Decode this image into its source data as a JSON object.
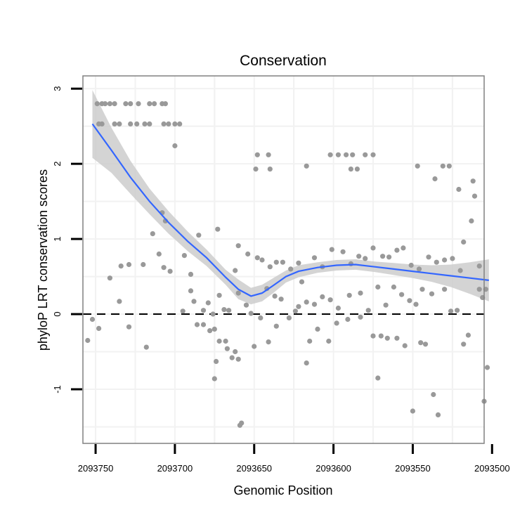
{
  "chart_data": {
    "type": "scatter",
    "title": "Conservation",
    "xlabel": "Genomic Position",
    "ylabel": "phyloP LRT conservation scores",
    "x_reversed": true,
    "xlim": [
      2093505,
      2093758
    ],
    "ylim": [
      -1.72,
      3.17
    ],
    "x_ticks": [
      2093750,
      2093700,
      2093650,
      2093600,
      2093550,
      2093500
    ],
    "x_tick_labels": [
      "2093750",
      "2093700",
      "2093650",
      "2093600",
      "2093550",
      "2093500"
    ],
    "y_ticks": [
      -1,
      0,
      1,
      2,
      3
    ],
    "y_tick_labels": [
      "-1",
      "0",
      "1",
      "2",
      "3"
    ],
    "grid": true,
    "reference_line": {
      "y": 0,
      "style": "dashed"
    },
    "colors": {
      "points": "#999999",
      "smooth": "#3366ff",
      "ribbon": "#cccccc",
      "panel_border": "#808080",
      "grid": "#f2f2f2"
    },
    "series": [
      {
        "name": "scores",
        "type": "scatter",
        "points": [
          [
            2093749,
            2.8
          ],
          [
            2093746,
            2.8
          ],
          [
            2093744,
            2.8
          ],
          [
            2093741,
            2.8
          ],
          [
            2093738,
            2.8
          ],
          [
            2093731,
            2.8
          ],
          [
            2093728,
            2.8
          ],
          [
            2093723,
            2.8
          ],
          [
            2093716,
            2.8
          ],
          [
            2093713,
            2.8
          ],
          [
            2093708,
            2.8
          ],
          [
            2093706,
            2.8
          ],
          [
            2093748,
            2.53
          ],
          [
            2093746,
            2.53
          ],
          [
            2093738,
            2.53
          ],
          [
            2093735,
            2.53
          ],
          [
            2093728,
            2.53
          ],
          [
            2093724,
            2.53
          ],
          [
            2093719,
            2.53
          ],
          [
            2093716,
            2.53
          ],
          [
            2093707,
            2.53
          ],
          [
            2093704,
            2.53
          ],
          [
            2093700,
            2.53
          ],
          [
            2093697,
            2.53
          ],
          [
            2093700,
            2.24
          ],
          [
            2093708,
            1.35
          ],
          [
            2093648,
            2.12
          ],
          [
            2093641,
            2.12
          ],
          [
            2093649,
            1.93
          ],
          [
            2093640,
            1.93
          ],
          [
            2093617,
            1.97
          ],
          [
            2093602,
            2.12
          ],
          [
            2093597,
            2.12
          ],
          [
            2093592,
            2.12
          ],
          [
            2093588,
            2.12
          ],
          [
            2093580,
            2.12
          ],
          [
            2093575,
            2.12
          ],
          [
            2093589,
            1.93
          ],
          [
            2093585,
            1.93
          ],
          [
            2093547,
            1.97
          ],
          [
            2093531,
            1.97
          ],
          [
            2093527,
            1.97
          ],
          [
            2093536,
            1.8
          ],
          [
            2093521,
            1.66
          ],
          [
            2093512,
            1.77
          ],
          [
            2093511,
            1.57
          ],
          [
            2093513,
            1.24
          ],
          [
            2093518,
            0.96
          ],
          [
            2093504,
            0.33
          ],
          [
            2093508,
            0.33
          ],
          [
            2093506,
            0.22
          ],
          [
            2093508,
            0.64
          ],
          [
            2093503,
            -0.71
          ],
          [
            2093505,
            -1.16
          ],
          [
            2093515,
            -0.28
          ],
          [
            2093518,
            -0.4
          ],
          [
            2093522,
            0.05
          ],
          [
            2093706,
            1.24
          ],
          [
            2093714,
            1.07
          ],
          [
            2093710,
            0.8
          ],
          [
            2093707,
            0.62
          ],
          [
            2093694,
            0.78
          ],
          [
            2093690,
            0.53
          ],
          [
            2093685,
            1.05
          ],
          [
            2093673,
            1.13
          ],
          [
            2093660,
            0.91
          ],
          [
            2093654,
            0.8
          ],
          [
            2093662,
            0.58
          ],
          [
            2093729,
            0.66
          ],
          [
            2093734,
            0.64
          ],
          [
            2093741,
            0.48
          ],
          [
            2093735,
            0.17
          ],
          [
            2093755,
            -0.35
          ],
          [
            2093752,
            -0.07
          ],
          [
            2093748,
            -0.19
          ],
          [
            2093729,
            -0.17
          ],
          [
            2093718,
            -0.44
          ],
          [
            2093690,
            0.31
          ],
          [
            2093688,
            0.17
          ],
          [
            2093682,
            0.05
          ],
          [
            2093679,
            0.15
          ],
          [
            2093672,
            0.25
          ],
          [
            2093686,
            -0.14
          ],
          [
            2093682,
            -0.14
          ],
          [
            2093678,
            -0.22
          ],
          [
            2093675,
            -0.2
          ],
          [
            2093672,
            -0.36
          ],
          [
            2093668,
            -0.36
          ],
          [
            2093667,
            -0.46
          ],
          [
            2093664,
            -0.58
          ],
          [
            2093662,
            -0.5
          ],
          [
            2093659,
            -1.48
          ],
          [
            2093658,
            -1.45
          ],
          [
            2093650,
            -0.43
          ],
          [
            2093675,
            -0.86
          ],
          [
            2093674,
            -0.63
          ],
          [
            2093648,
            0.75
          ],
          [
            2093645,
            0.72
          ],
          [
            2093640,
            0.63
          ],
          [
            2093636,
            0.69
          ],
          [
            2093632,
            0.69
          ],
          [
            2093627,
            0.6
          ],
          [
            2093622,
            0.68
          ],
          [
            2093612,
            0.75
          ],
          [
            2093607,
            0.63
          ],
          [
            2093601,
            0.86
          ],
          [
            2093594,
            0.83
          ],
          [
            2093589,
            0.67
          ],
          [
            2093584,
            0.77
          ],
          [
            2093580,
            0.74
          ],
          [
            2093575,
            0.88
          ],
          [
            2093569,
            0.77
          ],
          [
            2093565,
            0.76
          ],
          [
            2093560,
            0.85
          ],
          [
            2093556,
            0.88
          ],
          [
            2093551,
            0.65
          ],
          [
            2093546,
            0.6
          ],
          [
            2093540,
            0.76
          ],
          [
            2093535,
            0.69
          ],
          [
            2093530,
            0.72
          ],
          [
            2093525,
            0.74
          ],
          [
            2093520,
            0.58
          ],
          [
            2093642,
            0.34
          ],
          [
            2093637,
            0.24
          ],
          [
            2093633,
            0.2
          ],
          [
            2093624,
            0.04
          ],
          [
            2093617,
            0.16
          ],
          [
            2093612,
            0.13
          ],
          [
            2093607,
            0.23
          ],
          [
            2093602,
            0.19
          ],
          [
            2093597,
            0.08
          ],
          [
            2093590,
            0.25
          ],
          [
            2093583,
            0.28
          ],
          [
            2093578,
            0.05
          ],
          [
            2093572,
            0.36
          ],
          [
            2093567,
            0.12
          ],
          [
            2093562,
            0.36
          ],
          [
            2093557,
            0.26
          ],
          [
            2093552,
            0.18
          ],
          [
            2093548,
            0.13
          ],
          [
            2093544,
            0.33
          ],
          [
            2093538,
            0.27
          ],
          [
            2093530,
            0.33
          ],
          [
            2093526,
            0.04
          ],
          [
            2093636,
            -0.16
          ],
          [
            2093628,
            -0.05
          ],
          [
            2093622,
            0.1
          ],
          [
            2093620,
            0.43
          ],
          [
            2093615,
            -0.36
          ],
          [
            2093610,
            -0.2
          ],
          [
            2093603,
            -0.36
          ],
          [
            2093598,
            -0.12
          ],
          [
            2093591,
            -0.07
          ],
          [
            2093583,
            -0.04
          ],
          [
            2093575,
            -0.29
          ],
          [
            2093570,
            -0.29
          ],
          [
            2093566,
            -0.32
          ],
          [
            2093560,
            -0.32
          ],
          [
            2093555,
            -0.42
          ],
          [
            2093550,
            -1.29
          ],
          [
            2093545,
            -0.38
          ],
          [
            2093542,
            -0.4
          ],
          [
            2093537,
            -1.07
          ],
          [
            2093534,
            -1.34
          ],
          [
            2093617,
            -0.65
          ],
          [
            2093641,
            -0.37
          ],
          [
            2093646,
            -0.05
          ],
          [
            2093652,
            0.01
          ],
          [
            2093655,
            0.12
          ],
          [
            2093660,
            0.28
          ],
          [
            2093666,
            0.05
          ],
          [
            2093669,
            0.06
          ],
          [
            2093676,
            0.0
          ],
          [
            2093695,
            0.04
          ],
          [
            2093703,
            0.57
          ],
          [
            2093720,
            0.66
          ],
          [
            2093572,
            -0.85
          ],
          [
            2093660,
            -0.6
          ]
        ]
      },
      {
        "name": "smooth",
        "type": "line",
        "x": [
          2093752,
          2093740,
          2093728,
          2093716,
          2093704,
          2093692,
          2093680,
          2093668,
          2093660,
          2093652,
          2093645,
          2093638,
          2093630,
          2093622,
          2093610,
          2093598,
          2093586,
          2093574,
          2093562,
          2093550,
          2093538,
          2093526,
          2093514,
          2093502
        ],
        "y": [
          2.53,
          2.18,
          1.82,
          1.5,
          1.22,
          0.97,
          0.75,
          0.49,
          0.33,
          0.24,
          0.28,
          0.38,
          0.5,
          0.57,
          0.62,
          0.65,
          0.66,
          0.63,
          0.6,
          0.57,
          0.54,
          0.51,
          0.48,
          0.45
        ],
        "ci_lower": [
          2.08,
          1.88,
          1.6,
          1.33,
          1.07,
          0.84,
          0.64,
          0.39,
          0.2,
          0.13,
          0.17,
          0.28,
          0.42,
          0.49,
          0.55,
          0.58,
          0.59,
          0.56,
          0.52,
          0.48,
          0.43,
          0.36,
          0.27,
          0.17
        ],
        "ci_upper": [
          2.98,
          2.48,
          2.04,
          1.67,
          1.37,
          1.1,
          0.86,
          0.59,
          0.46,
          0.35,
          0.39,
          0.48,
          0.58,
          0.65,
          0.69,
          0.72,
          0.73,
          0.7,
          0.68,
          0.66,
          0.65,
          0.66,
          0.69,
          0.73
        ]
      }
    ]
  }
}
